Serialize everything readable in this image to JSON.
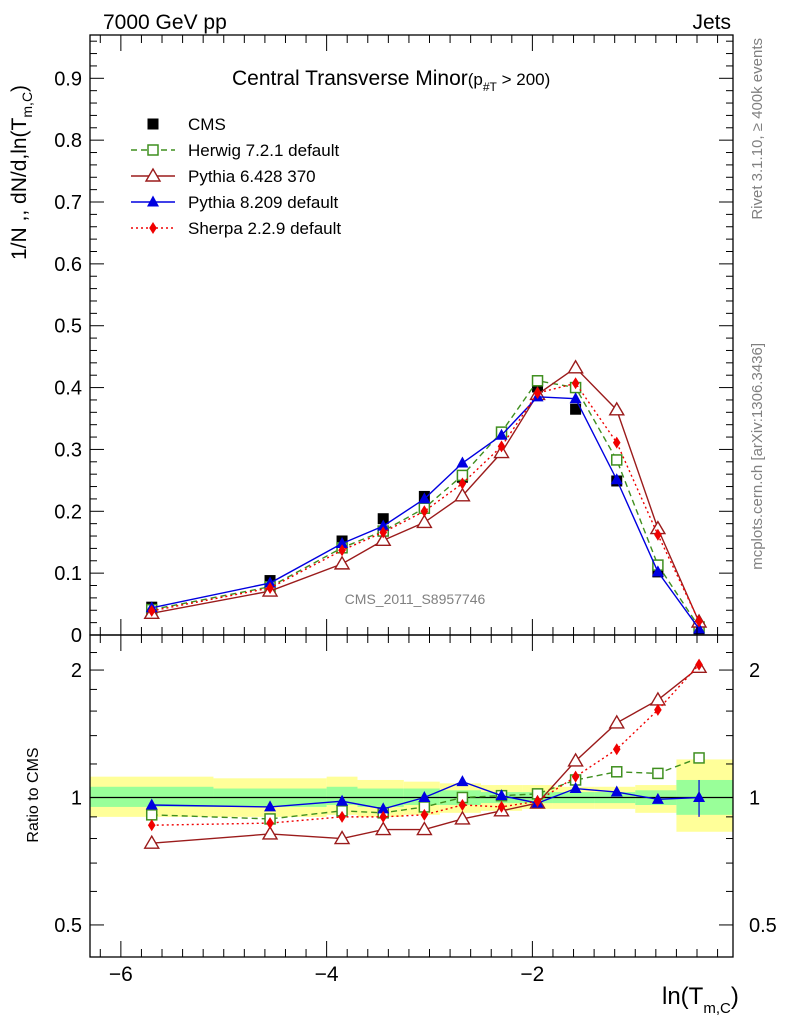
{
  "header": {
    "left": "7000 GeV pp",
    "right": "Jets"
  },
  "title": {
    "main": "Central Transverse Minor",
    "cut_open": "(p",
    "cut_sub": "#T",
    "cut_close": " > 200)"
  },
  "side_text": {
    "rivet": "Rivet 3.1.10, ≥ 400k events",
    "mcplots": "mcplots.cern.ch [arXiv:1306.3436]"
  },
  "watermark": "CMS_2011_S8957746",
  "colors": {
    "cms": "#000000",
    "herwig": "#3f8f1f",
    "pythia6": "#9b1b1b",
    "pythia8": "#0000e0",
    "sherpa": "#f00000",
    "band_yellow": "#ffff99",
    "band_green": "#99ff99"
  },
  "chart_data": {
    "type": "line",
    "x": [
      -5.7,
      -4.55,
      -3.85,
      -3.45,
      -3.05,
      -2.68,
      -2.3,
      -1.95,
      -1.58,
      -1.18,
      -0.78,
      -0.38
    ],
    "main_panel": {
      "ylabel": "1/N ,, dN/d,ln(T_m,C)",
      "ylabel_main": "1/N ,, dN/d,ln(T",
      "ylabel_sub": "m,C",
      "ylabel_close": ")",
      "xlim": [
        -6.3,
        -0.05
      ],
      "ylim": [
        0,
        0.97
      ],
      "yticks": [
        0,
        0.1,
        0.2,
        0.3,
        0.4,
        0.5,
        0.6,
        0.7,
        0.8,
        0.9
      ],
      "ytick_labels": [
        "0",
        "0.1",
        "0.2",
        "0.3",
        "0.4",
        "0.5",
        "0.6",
        "0.7",
        "0.8",
        "0.9"
      ],
      "series": [
        {
          "name": "CMS",
          "key": "cms",
          "marker": "square-filled",
          "style": "none",
          "values": [
            0.045,
            0.088,
            0.152,
            0.188,
            0.224,
            0.255,
            0.325,
            0.401,
            0.365,
            0.249,
            0.102,
            0.01
          ]
        },
        {
          "name": "Herwig 7.2.1 default",
          "key": "herwig",
          "marker": "square-open",
          "style": "dashed",
          "values": [
            0.041,
            0.078,
            0.141,
            0.168,
            0.205,
            0.258,
            0.328,
            0.411,
            0.4,
            0.283,
            0.113,
            0.013
          ]
        },
        {
          "name": "Pythia 6.428 370",
          "key": "pythia6",
          "marker": "triangle-open",
          "style": "solid",
          "values": [
            0.035,
            0.071,
            0.115,
            0.153,
            0.182,
            0.225,
            0.295,
            0.389,
            0.432,
            0.364,
            0.172,
            0.021
          ]
        },
        {
          "name": "Pythia 8.209 default",
          "key": "pythia8",
          "marker": "triangle-filled",
          "style": "solid",
          "values": [
            0.044,
            0.084,
            0.148,
            0.176,
            0.22,
            0.278,
            0.323,
            0.385,
            0.382,
            0.251,
            0.102,
            0.01
          ]
        },
        {
          "name": "Sherpa 2.2.9 default",
          "key": "sherpa",
          "marker": "diamond-filled",
          "style": "dotted",
          "values": [
            0.039,
            0.076,
            0.137,
            0.166,
            0.2,
            0.245,
            0.305,
            0.391,
            0.407,
            0.311,
            0.162,
            0.022
          ]
        }
      ]
    },
    "ratio_panel": {
      "ylabel": "Ratio to CMS",
      "ylim": [
        0.42,
        2.42
      ],
      "yscale": "log",
      "yticks": [
        0.5,
        1,
        2
      ],
      "ytick_labels": [
        "0.5",
        "1",
        "2"
      ],
      "band_edges": [
        -6.3,
        -5.1,
        -4.0,
        -3.7,
        -3.25,
        -2.9,
        -2.5,
        -2.1,
        -1.8,
        -1.4,
        -1.0,
        -0.6,
        -0.05
      ],
      "band_yellow": [
        [
          0.9,
          1.12
        ],
        [
          0.9,
          1.11
        ],
        [
          0.91,
          1.12
        ],
        [
          0.9,
          1.1
        ],
        [
          0.91,
          1.09
        ],
        [
          0.92,
          1.08
        ],
        [
          0.93,
          1.07
        ],
        [
          0.94,
          1.07
        ],
        [
          0.94,
          1.06
        ],
        [
          0.94,
          1.06
        ],
        [
          0.92,
          1.07
        ],
        [
          0.83,
          1.23
        ]
      ],
      "band_green": [
        [
          0.95,
          1.06
        ],
        [
          0.95,
          1.05
        ],
        [
          0.96,
          1.06
        ],
        [
          0.95,
          1.05
        ],
        [
          0.96,
          1.05
        ],
        [
          0.96,
          1.04
        ],
        [
          0.97,
          1.03
        ],
        [
          0.97,
          1.03
        ],
        [
          0.97,
          1.03
        ],
        [
          0.97,
          1.03
        ],
        [
          0.96,
          1.04
        ],
        [
          0.91,
          1.1
        ]
      ],
      "series": [
        {
          "name": "Herwig 7.2.1 default",
          "key": "herwig",
          "values": [
            0.91,
            0.89,
            0.93,
            0.92,
            0.95,
            1.0,
            1.01,
            1.02,
            1.1,
            1.15,
            1.14,
            1.24
          ]
        },
        {
          "name": "Pythia 6.428 370",
          "key": "pythia6",
          "values": [
            0.78,
            0.82,
            0.8,
            0.84,
            0.84,
            0.89,
            0.93,
            0.97,
            1.22,
            1.5,
            1.7,
            2.03
          ]
        },
        {
          "name": "Pythia 8.209 default",
          "key": "pythia8",
          "values": [
            0.96,
            0.95,
            0.98,
            0.94,
            1.0,
            1.09,
            1.01,
            0.97,
            1.05,
            1.03,
            0.99,
            1.0
          ]
        },
        {
          "name": "Sherpa 2.2.9 default",
          "key": "sherpa",
          "values": [
            0.86,
            0.87,
            0.9,
            0.9,
            0.91,
            0.96,
            0.95,
            0.98,
            1.12,
            1.3,
            1.61,
            2.06
          ]
        }
      ]
    },
    "xaxis": {
      "label_main": "ln(T",
      "label_sub": "m,C",
      "label_close": ")",
      "ticks": [
        -6,
        -4,
        -2
      ],
      "tick_labels": [
        "−6",
        "−4",
        "−2"
      ]
    }
  }
}
